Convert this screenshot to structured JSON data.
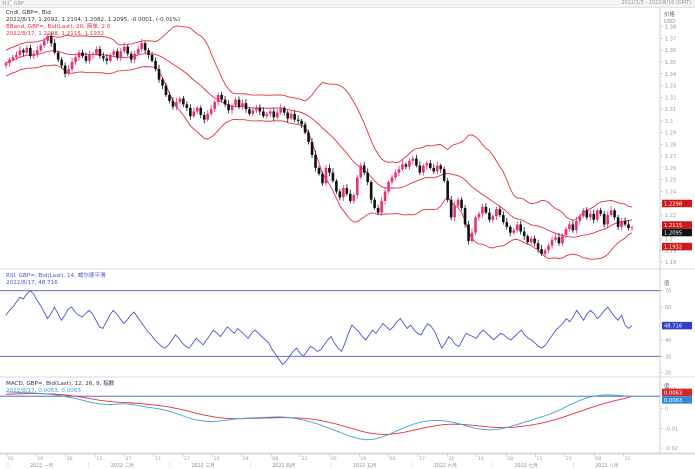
{
  "window": {
    "title": "外汇 GBP",
    "range": "2022/1/3 - 2022/8/16 (GMT)"
  },
  "price_panel": {
    "info_lines": [
      {
        "text": "Cndl, GBP=, Bid",
        "color": "#333333"
      },
      {
        "text": "2022/8/17, 1.2092, 1.2104, 1.2082, 1.2095, -0.0001, (-0.01%)",
        "color": "#333333"
      },
      {
        "text": "BBand, GBP=, Bid(Last), 20, 简单, 2.0",
        "color": "#e4323c"
      },
      {
        "text": "2022/8/17, 1.2298, 1.2115, 1.1932",
        "color": "#e4323c"
      }
    ],
    "axis_title": "价格",
    "currency": "USD",
    "ylim": [
      1.175,
      1.395
    ],
    "yticks": [
      1.38,
      1.37,
      1.36,
      1.35,
      1.34,
      1.33,
      1.32,
      1.31,
      1.3,
      1.29,
      1.28,
      1.27,
      1.26,
      1.25,
      1.24,
      1.23,
      1.22,
      1.21,
      1.2,
      1.19,
      1.18
    ],
    "ytick_labels": [
      "1.38",
      "1.37",
      "1.36",
      "1.35",
      "1.34",
      "1.33",
      "1.32",
      "1.31",
      "1.3",
      "1.29",
      "1.28",
      "1.27",
      "1.26",
      "1.25",
      "1.24",
      "1.23",
      "1.22",
      "1.21",
      "1.2",
      "1.19",
      "1.18"
    ],
    "badges": [
      {
        "value": 1.2298,
        "label": "1.2298",
        "color": "#cc1a1a"
      },
      {
        "value": 1.2115,
        "label": "1.2115",
        "color": "#cc1a1a"
      },
      {
        "value": 1.2095,
        "label": "1.2095",
        "color": "#111111"
      },
      {
        "value": 1.1932,
        "label": "1.1932",
        "color": "#cc1a1a"
      }
    ]
  },
  "rsi_panel": {
    "info_lines": [
      {
        "text": "RSI, GBP=, Bid(Last), 14, 威尔德平滑",
        "color": "#4a55d6"
      },
      {
        "text": "2022/8/17, 48.716",
        "color": "#4a55d6"
      }
    ],
    "axis_title": "值",
    "ylim": [
      18,
      82
    ],
    "levels": [
      70,
      30
    ],
    "yticks": [
      70,
      60,
      50,
      40,
      30,
      20
    ],
    "ytick_labels": [
      "70",
      "60",
      "50",
      "40",
      "30",
      "20"
    ],
    "badge": {
      "value": 48.716,
      "label": "48.716",
      "color": "#2f3fc8"
    }
  },
  "macd_panel": {
    "info_lines": [
      {
        "text": "MACD, GBP=, Bid(Last), 12, 26, 9, 指数",
        "color": "#303060"
      },
      {
        "text": "2022/8/17, 0.0063, 0.0063",
        "color": "#3ba3d8"
      }
    ],
    "axis_title": "值",
    "ylim": [
      -0.022,
      0.015
    ],
    "level": 0.0063,
    "yticks": [
      0.01,
      0,
      -0.01,
      -0.02
    ],
    "ytick_labels": [
      "0.01",
      "0",
      "-0.01",
      "-0.02"
    ],
    "badges": [
      {
        "value": 0.0063,
        "label": "0.0063",
        "color": "#d8262e"
      },
      {
        "value": 0.0063,
        "label": "0.0063",
        "color": "#2f8ad8"
      }
    ]
  },
  "x_axis": {
    "day_ticks": [
      "02",
      "16",
      "30",
      "13",
      "27",
      "13",
      "27",
      "10",
      "24",
      "08",
      "22",
      "05",
      "19",
      "03",
      "17",
      "31",
      "14",
      "28",
      "11",
      "25",
      "08",
      "22"
    ],
    "period_labels": [
      "2022 一月",
      "2022 二月",
      "2022 三月",
      "2022 四月",
      "2022 五月",
      "2022 六月",
      "2022 七月",
      "2022 八月"
    ]
  },
  "chart_data": [
    {
      "type": "candlestick",
      "title": "Cndl, GBP=, Bid",
      "series_name": "GBP=",
      "ylim": [
        1.175,
        1.395
      ],
      "close": [
        1.349,
        1.352,
        1.354,
        1.356,
        1.36,
        1.358,
        1.362,
        1.355,
        1.357,
        1.36,
        1.364,
        1.368,
        1.372,
        1.366,
        1.358,
        1.352,
        1.347,
        1.34,
        1.344,
        1.35,
        1.354,
        1.358,
        1.355,
        1.351,
        1.356,
        1.357,
        1.361,
        1.355,
        1.353,
        1.351,
        1.356,
        1.359,
        1.354,
        1.359,
        1.363,
        1.357,
        1.352,
        1.357,
        1.361,
        1.366,
        1.36,
        1.356,
        1.351,
        1.344,
        1.335,
        1.33,
        1.322,
        1.317,
        1.312,
        1.316,
        1.319,
        1.314,
        1.311,
        1.304,
        1.308,
        1.311,
        1.305,
        1.301,
        1.306,
        1.31,
        1.316,
        1.322,
        1.318,
        1.314,
        1.309,
        1.313,
        1.318,
        1.312,
        1.315,
        1.31,
        1.306,
        1.309,
        1.311,
        1.308,
        1.304,
        1.306,
        1.308,
        1.303,
        1.307,
        1.311,
        1.307,
        1.302,
        1.306,
        1.301,
        1.3,
        1.297,
        1.29,
        1.282,
        1.271,
        1.26,
        1.255,
        1.247,
        1.26,
        1.256,
        1.249,
        1.24,
        1.235,
        1.243,
        1.238,
        1.232,
        1.237,
        1.252,
        1.262,
        1.256,
        1.248,
        1.233,
        1.226,
        1.222,
        1.232,
        1.24,
        1.248,
        1.252,
        1.256,
        1.259,
        1.263,
        1.261,
        1.266,
        1.268,
        1.262,
        1.256,
        1.262,
        1.264,
        1.26,
        1.257,
        1.262,
        1.259,
        1.249,
        1.233,
        1.218,
        1.228,
        1.233,
        1.226,
        1.212,
        1.198,
        1.205,
        1.218,
        1.221,
        1.227,
        1.222,
        1.216,
        1.219,
        1.225,
        1.22,
        1.214,
        1.21,
        1.205,
        1.207,
        1.212,
        1.206,
        1.202,
        1.197,
        1.2,
        1.196,
        1.191,
        1.187,
        1.19,
        1.194,
        1.199,
        1.201,
        1.196,
        1.203,
        1.208,
        1.212,
        1.207,
        1.215,
        1.219,
        1.224,
        1.218,
        1.221,
        1.216,
        1.224,
        1.221,
        1.212,
        1.22,
        1.224,
        1.218,
        1.21,
        1.215,
        1.212,
        1.209,
        1.2095
      ]
    },
    {
      "type": "line",
      "title": "BBand, GBP=, Bid(Last), 20, 简单, 2.0",
      "series": [
        {
          "name": "Upper",
          "key": "upper",
          "color": "#e4323c"
        },
        {
          "name": "Middle",
          "key": "middle",
          "color": "#e4323c"
        },
        {
          "name": "Lower",
          "key": "lower",
          "color": "#e4323c"
        }
      ],
      "last_values": {
        "upper": 1.2298,
        "middle": 1.2115,
        "lower": 1.1932
      }
    },
    {
      "type": "line",
      "title": "RSI, GBP=, Bid(Last), 14, 威尔德平滑",
      "series": [
        {
          "name": "RSI",
          "color": "#4a55d6",
          "values": [
            55,
            58,
            60,
            63,
            66,
            65,
            68,
            70,
            68,
            64,
            61,
            57,
            53,
            56,
            60,
            56,
            52,
            55,
            59,
            60,
            57,
            55,
            54,
            56,
            58,
            56,
            52,
            48,
            47,
            51,
            55,
            58,
            56,
            53,
            50,
            52,
            55,
            57,
            54,
            51,
            48,
            45,
            43,
            40,
            38,
            36,
            35,
            37,
            40,
            43,
            41,
            38,
            36,
            35,
            38,
            41,
            39,
            37,
            40,
            43,
            46,
            44,
            42,
            45,
            48,
            46,
            44,
            47,
            45,
            43,
            41,
            44,
            46,
            44,
            42,
            40,
            38,
            34,
            31,
            28,
            25,
            27,
            30,
            33,
            35,
            32,
            30,
            33,
            36,
            35,
            33,
            34,
            37,
            40,
            42,
            38,
            35,
            33,
            38,
            44,
            49,
            47,
            45,
            42,
            40,
            43,
            46,
            44,
            47,
            50,
            48,
            46,
            48,
            51,
            53,
            50,
            47,
            49,
            46,
            44,
            43,
            47,
            50,
            48,
            45,
            40,
            35,
            38,
            42,
            40,
            37,
            36,
            40,
            44,
            43,
            42,
            41,
            44,
            46,
            44,
            42,
            40,
            42,
            44,
            43,
            41,
            40,
            42,
            44,
            46,
            43,
            41,
            40,
            38,
            36,
            35,
            37,
            40,
            43,
            46,
            48,
            50,
            53,
            51,
            54,
            58,
            55,
            52,
            56,
            58,
            56,
            53,
            55,
            58,
            60,
            57,
            54,
            52,
            55,
            49,
            47,
            48.716
          ]
        }
      ]
    },
    {
      "type": "line",
      "title": "MACD, GBP=, Bid(Last), 12, 26, 9, 指数",
      "series": [
        {
          "name": "MACD",
          "color": "#3ba3d8",
          "values": [
            0.0085,
            0.0083,
            0.0081,
            0.008,
            0.0078,
            0.0075,
            0.0071,
            0.0066,
            0.0058,
            0.005,
            0.004,
            0.003,
            0.0024,
            0.002,
            0.0022,
            0.0024,
            0.0022,
            0.0015,
            0.0008,
            0.0002,
            -0.0005,
            -0.0015,
            -0.0028,
            -0.0042,
            -0.0055,
            -0.0062,
            -0.0066,
            -0.0064,
            -0.006,
            -0.0054,
            -0.005,
            -0.0048,
            -0.0046,
            -0.0044,
            -0.0043,
            -0.0042,
            -0.0045,
            -0.005,
            -0.0058,
            -0.0068,
            -0.008,
            -0.0095,
            -0.011,
            -0.0125,
            -0.014,
            -0.0152,
            -0.0158,
            -0.0155,
            -0.0145,
            -0.013,
            -0.0112,
            -0.0095,
            -0.008,
            -0.0068,
            -0.0062,
            -0.006,
            -0.0062,
            -0.0068,
            -0.0078,
            -0.009,
            -0.01,
            -0.0106,
            -0.0108,
            -0.0104,
            -0.0096,
            -0.0085,
            -0.0072,
            -0.006,
            -0.0048,
            -0.0035,
            -0.002,
            -0.0002,
            0.0018,
            0.0036,
            0.0052,
            0.0062,
            0.0068,
            0.007,
            0.0068,
            0.0065,
            0.0063
          ]
        },
        {
          "name": "Signal",
          "color": "#e4323c",
          "values": [
            0.0072,
            0.0074,
            0.0075,
            0.0076,
            0.0076,
            0.0075,
            0.0074,
            0.0071,
            0.0067,
            0.0062,
            0.0056,
            0.0049,
            0.0042,
            0.0037,
            0.0033,
            0.0031,
            0.0029,
            0.0026,
            0.0022,
            0.0018,
            0.0013,
            0.0007,
            -0.0001,
            -0.001,
            -0.002,
            -0.003,
            -0.0038,
            -0.0045,
            -0.0049,
            -0.0051,
            -0.0051,
            -0.005,
            -0.0049,
            -0.0048,
            -0.0047,
            -0.0046,
            -0.0046,
            -0.0047,
            -0.0049,
            -0.0053,
            -0.0059,
            -0.0067,
            -0.0076,
            -0.0087,
            -0.0098,
            -0.011,
            -0.012,
            -0.0127,
            -0.0131,
            -0.013,
            -0.0126,
            -0.0119,
            -0.011,
            -0.0101,
            -0.0093,
            -0.0086,
            -0.0081,
            -0.0079,
            -0.008,
            -0.0082,
            -0.0086,
            -0.009,
            -0.0094,
            -0.0096,
            -0.0096,
            -0.0094,
            -0.009,
            -0.0084,
            -0.0077,
            -0.0068,
            -0.0058,
            -0.0046,
            -0.0033,
            -0.0019,
            -0.0005,
            0.0008,
            0.0021,
            0.0032,
            0.0042,
            0.005,
            0.0063
          ]
        }
      ]
    }
  ]
}
